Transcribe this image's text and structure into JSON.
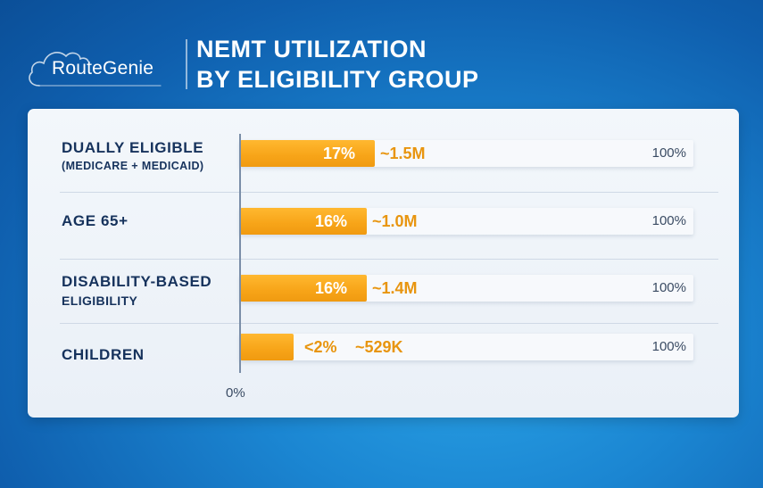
{
  "brand": {
    "logo_text": "RouteGenie"
  },
  "header": {
    "title_line1": "NEMT UTILIZATION",
    "title_line2": "BY ELIGIBILITY GROUP"
  },
  "colors": {
    "bar": "#f7a418",
    "label": "#16325c",
    "value_label": "#e8950f"
  },
  "chart_data": {
    "type": "bar",
    "orientation": "horizontal",
    "categories": [
      {
        "name": "DUALLY ELIGIBLE",
        "sub": "(MEDICARE + MEDICAID)"
      },
      {
        "name": "AGE 65+",
        "sub": ""
      },
      {
        "name": "DISABILITY-BASED",
        "sub": "ELIGIBILITY"
      },
      {
        "name": "CHILDREN",
        "sub": ""
      }
    ],
    "values": [
      17,
      16,
      16,
      2
    ],
    "value_labels": [
      "17%",
      "16%",
      "16%",
      "<2%"
    ],
    "counts": [
      "~1.5M",
      "~1.0M",
      "~1.4M",
      "~529K"
    ],
    "axis_min_label": "0%",
    "axis_max_label": "100%",
    "xlim": [
      0,
      100
    ]
  }
}
